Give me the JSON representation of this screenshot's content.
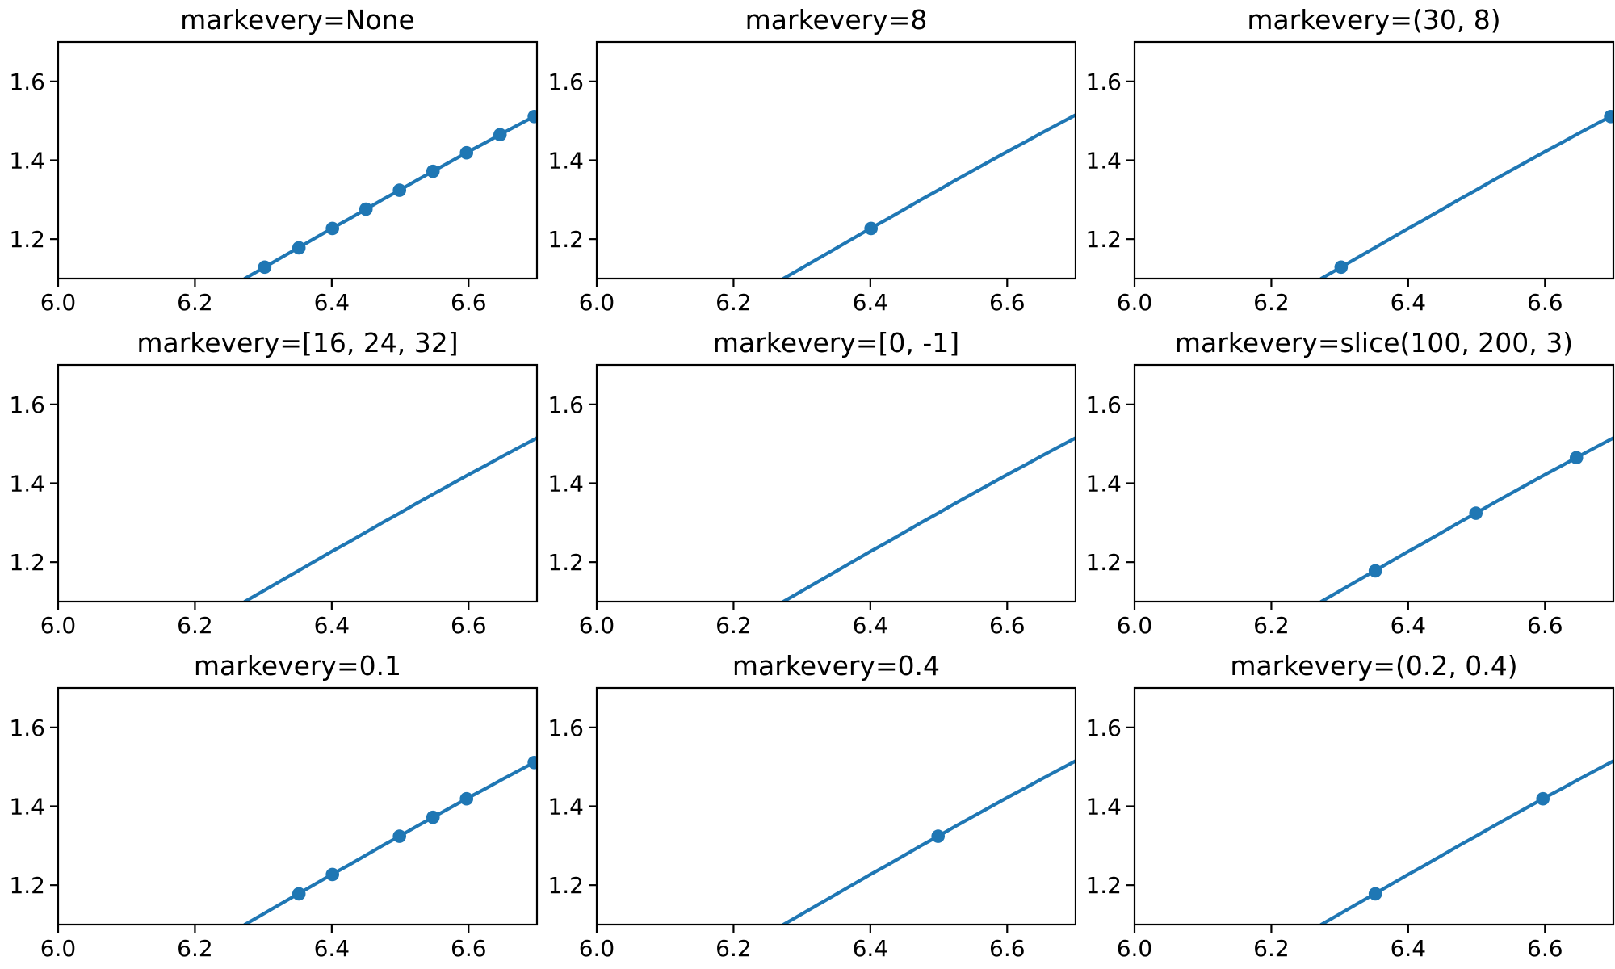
{
  "figure": {
    "background": "#ffffff",
    "text_color": "#000000",
    "spine_color": "#000000",
    "rows": 3,
    "cols": 3
  },
  "chart_data": {
    "type": "line",
    "description": "3x3 grid of zoomed subplots of y=sin(x)+1.11 demonstrating the markevery parameter",
    "line_color": "#1f77b4",
    "marker_color": "#1f77b4",
    "marker_shape": "circle",
    "grid": false,
    "legend": false,
    "shared_axes": {
      "xlim": [
        6.0,
        6.7
      ],
      "ylim": [
        1.1,
        1.7
      ],
      "xtick_values": [
        6.0,
        6.2,
        6.4,
        6.6
      ],
      "xtick_labels": [
        "6.0",
        "6.2",
        "6.4",
        "6.6"
      ],
      "ytick_values": [
        1.2,
        1.4,
        1.6
      ],
      "ytick_labels": [
        "1.2",
        "1.4",
        "1.6"
      ]
    },
    "line_points": [
      [
        6.273,
        1.1
      ],
      [
        6.3,
        1.127
      ],
      [
        6.325,
        1.152
      ],
      [
        6.35,
        1.177
      ],
      [
        6.375,
        1.202
      ],
      [
        6.4,
        1.227
      ],
      [
        6.425,
        1.251
      ],
      [
        6.45,
        1.276
      ],
      [
        6.475,
        1.301
      ],
      [
        6.5,
        1.325
      ],
      [
        6.525,
        1.35
      ],
      [
        6.55,
        1.374
      ],
      [
        6.575,
        1.398
      ],
      [
        6.6,
        1.422
      ],
      [
        6.625,
        1.445
      ],
      [
        6.65,
        1.469
      ],
      [
        6.675,
        1.492
      ],
      [
        6.7,
        1.515
      ]
    ],
    "subplots": [
      {
        "title": "markevery=None",
        "markers": [
          [
            6.302,
            1.129
          ],
          [
            6.352,
            1.178
          ],
          [
            6.401,
            1.227
          ],
          [
            6.45,
            1.276
          ],
          [
            6.499,
            1.324
          ],
          [
            6.548,
            1.372
          ],
          [
            6.597,
            1.419
          ],
          [
            6.646,
            1.465
          ],
          [
            6.696,
            1.511
          ]
        ]
      },
      {
        "title": "markevery=8",
        "markers": [
          [
            6.401,
            1.227
          ]
        ]
      },
      {
        "title": "markevery=(30, 8)",
        "markers": [
          [
            6.302,
            1.129
          ],
          [
            6.696,
            1.511
          ]
        ]
      },
      {
        "title": "markevery=[16, 24, 32]",
        "markers": []
      },
      {
        "title": "markevery=[0, -1]",
        "markers": []
      },
      {
        "title": "markevery=slice(100, 200, 3)",
        "markers": [
          [
            6.352,
            1.178
          ],
          [
            6.499,
            1.324
          ],
          [
            6.646,
            1.465
          ]
        ]
      },
      {
        "title": "markevery=0.1",
        "markers": [
          [
            6.352,
            1.178
          ],
          [
            6.401,
            1.227
          ],
          [
            6.499,
            1.324
          ],
          [
            6.548,
            1.372
          ],
          [
            6.597,
            1.419
          ],
          [
            6.696,
            1.511
          ]
        ]
      },
      {
        "title": "markevery=0.4",
        "markers": [
          [
            6.499,
            1.324
          ]
        ]
      },
      {
        "title": "markevery=(0.2, 0.4)",
        "markers": [
          [
            6.352,
            1.178
          ],
          [
            6.597,
            1.419
          ]
        ]
      }
    ]
  }
}
